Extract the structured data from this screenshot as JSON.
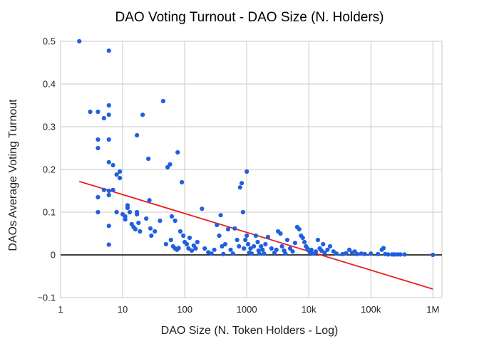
{
  "chart_data": {
    "type": "scatter",
    "title": "DAO Voting Turnout - DAO Size (N. Holders)",
    "xlabel": "DAO Size (N. Token Holders - Log)",
    "ylabel": "DAOs Average Voting Turnout",
    "x_scale": "log",
    "xlim": [
      1,
      1400000
    ],
    "ylim": [
      -0.1,
      0.5
    ],
    "x_ticks": [
      {
        "value": 1,
        "label": "1"
      },
      {
        "value": 10,
        "label": "10"
      },
      {
        "value": 100,
        "label": "100"
      },
      {
        "value": 1000,
        "label": "1000"
      },
      {
        "value": 10000,
        "label": "10k"
      },
      {
        "value": 100000,
        "label": "100k"
      },
      {
        "value": 1000000,
        "label": "1M"
      }
    ],
    "y_ticks": [
      {
        "value": 0.5,
        "label": "0.5"
      },
      {
        "value": 0.4,
        "label": "0.4"
      },
      {
        "value": 0.3,
        "label": "0.3"
      },
      {
        "value": 0.2,
        "label": "0.2"
      },
      {
        "value": 0.1,
        "label": "0.1"
      },
      {
        "value": 0,
        "label": "0"
      },
      {
        "value": -0.1,
        "label": "−0.1"
      }
    ],
    "grid": true,
    "legend": "none",
    "point_color": "#1f5fe0",
    "trendline_color": "#e82020",
    "trendline": {
      "x": [
        2,
        1000000
      ],
      "y": [
        0.172,
        -0.08
      ]
    },
    "series": [
      {
        "points": [
          [
            2,
            0.5
          ],
          [
            3,
            0.335
          ],
          [
            4,
            0.335
          ],
          [
            5,
            0.32
          ],
          [
            6,
            0.478
          ],
          [
            6,
            0.35
          ],
          [
            6,
            0.328
          ],
          [
            6,
            0.27
          ],
          [
            4,
            0.27
          ],
          [
            4,
            0.25
          ],
          [
            6,
            0.217
          ],
          [
            7,
            0.21
          ],
          [
            9,
            0.195
          ],
          [
            8,
            0.188
          ],
          [
            9,
            0.18
          ],
          [
            4,
            0.135
          ],
          [
            4,
            0.1
          ],
          [
            5,
            0.152
          ],
          [
            6,
            0.15
          ],
          [
            6,
            0.14
          ],
          [
            7,
            0.152
          ],
          [
            6,
            0.068
          ],
          [
            6,
            0.024
          ],
          [
            8,
            0.1
          ],
          [
            10,
            0.095
          ],
          [
            11,
            0.09
          ],
          [
            11,
            0.083
          ],
          [
            12,
            0.116
          ],
          [
            12,
            0.11
          ],
          [
            13,
            0.1
          ],
          [
            14,
            0.072
          ],
          [
            15,
            0.065
          ],
          [
            16,
            0.06
          ],
          [
            17,
            0.1
          ],
          [
            17,
            0.095
          ],
          [
            18,
            0.075
          ],
          [
            19,
            0.055
          ],
          [
            17,
            0.28
          ],
          [
            21,
            0.328
          ],
          [
            24,
            0.085
          ],
          [
            26,
            0.225
          ],
          [
            27,
            0.128
          ],
          [
            28,
            0.062
          ],
          [
            29,
            0.045
          ],
          [
            33,
            0.055
          ],
          [
            40,
            0.08
          ],
          [
            45,
            0.36
          ],
          [
            50,
            0.025
          ],
          [
            53,
            0.205
          ],
          [
            58,
            0.212
          ],
          [
            62,
            0.09
          ],
          [
            70,
            0.08
          ],
          [
            77,
            0.24
          ],
          [
            90,
            0.17
          ],
          [
            60,
            0.035
          ],
          [
            65,
            0.02
          ],
          [
            70,
            0.015
          ],
          [
            75,
            0.012
          ],
          [
            80,
            0.016
          ],
          [
            85,
            0.055
          ],
          [
            95,
            0.045
          ],
          [
            100,
            0.03
          ],
          [
            108,
            0.025
          ],
          [
            115,
            0.015
          ],
          [
            120,
            0.04
          ],
          [
            130,
            0.01
          ],
          [
            140,
            0.022
          ],
          [
            150,
            0.015
          ],
          [
            160,
            0.03
          ],
          [
            190,
            0.108
          ],
          [
            210,
            0.015
          ],
          [
            240,
            0.006
          ],
          [
            270,
            0.003
          ],
          [
            300,
            0.012
          ],
          [
            330,
            0.07
          ],
          [
            360,
            0.045
          ],
          [
            380,
            0.093
          ],
          [
            400,
            0.02
          ],
          [
            420,
            0.002
          ],
          [
            450,
            0.025
          ],
          [
            500,
            0.06
          ],
          [
            550,
            0.012
          ],
          [
            600,
            0.003
          ],
          [
            640,
            0.062
          ],
          [
            700,
            0.035
          ],
          [
            750,
            0.02
          ],
          [
            780,
            0.158
          ],
          [
            830,
            0.168
          ],
          [
            870,
            0.1
          ],
          [
            900,
            0.015
          ],
          [
            950,
            0.035
          ],
          [
            1000,
            0.195
          ],
          [
            1000,
            0.045
          ],
          [
            1050,
            0.025
          ],
          [
            1100,
            0.005
          ],
          [
            1150,
            0.015
          ],
          [
            1200,
            0.003
          ],
          [
            1300,
            0.02
          ],
          [
            1400,
            0.045
          ],
          [
            1500,
            0.03
          ],
          [
            1550,
            0.01
          ],
          [
            1600,
            0.003
          ],
          [
            1700,
            0.02
          ],
          [
            1800,
            0.012
          ],
          [
            1900,
            0.003
          ],
          [
            2000,
            0.025
          ],
          [
            2200,
            0.042
          ],
          [
            2500,
            0.015
          ],
          [
            2800,
            0.005
          ],
          [
            3000,
            0.012
          ],
          [
            3200,
            0.055
          ],
          [
            3500,
            0.05
          ],
          [
            3700,
            0.02
          ],
          [
            4000,
            0.01
          ],
          [
            4200,
            0.003
          ],
          [
            4500,
            0.035
          ],
          [
            5000,
            0.015
          ],
          [
            5500,
            0.008
          ],
          [
            6000,
            0.028
          ],
          [
            6500,
            0.065
          ],
          [
            7000,
            0.06
          ],
          [
            7500,
            0.045
          ],
          [
            8000,
            0.04
          ],
          [
            8500,
            0.03
          ],
          [
            9000,
            0.02
          ],
          [
            9500,
            0.015
          ],
          [
            10000,
            0.01
          ],
          [
            10500,
            0.005
          ],
          [
            11000,
            0.012
          ],
          [
            12000,
            0.003
          ],
          [
            13000,
            0.008
          ],
          [
            14000,
            0.035
          ],
          [
            15000,
            0.015
          ],
          [
            16000,
            0.01
          ],
          [
            17000,
            0.025
          ],
          [
            18000,
            0.005
          ],
          [
            20000,
            0.012
          ],
          [
            22000,
            0.02
          ],
          [
            25000,
            0.008
          ],
          [
            28000,
            0.003
          ],
          [
            35000,
            0.002
          ],
          [
            40000,
            0.004
          ],
          [
            45000,
            0.012
          ],
          [
            50000,
            0.005
          ],
          [
            55000,
            0.008
          ],
          [
            60000,
            0.002
          ],
          [
            70000,
            0.003
          ],
          [
            80000,
            0.002
          ],
          [
            100000,
            0.003
          ],
          [
            130000,
            0.002
          ],
          [
            150000,
            0.012
          ],
          [
            160000,
            0.016
          ],
          [
            170000,
            0.002
          ],
          [
            190000,
            0.001
          ],
          [
            220000,
            0.001
          ],
          [
            240000,
            0.001
          ],
          [
            270000,
            0.001
          ],
          [
            300000,
            0.001
          ],
          [
            350000,
            0.001
          ],
          [
            1000000,
            0.0
          ]
        ]
      }
    ]
  }
}
